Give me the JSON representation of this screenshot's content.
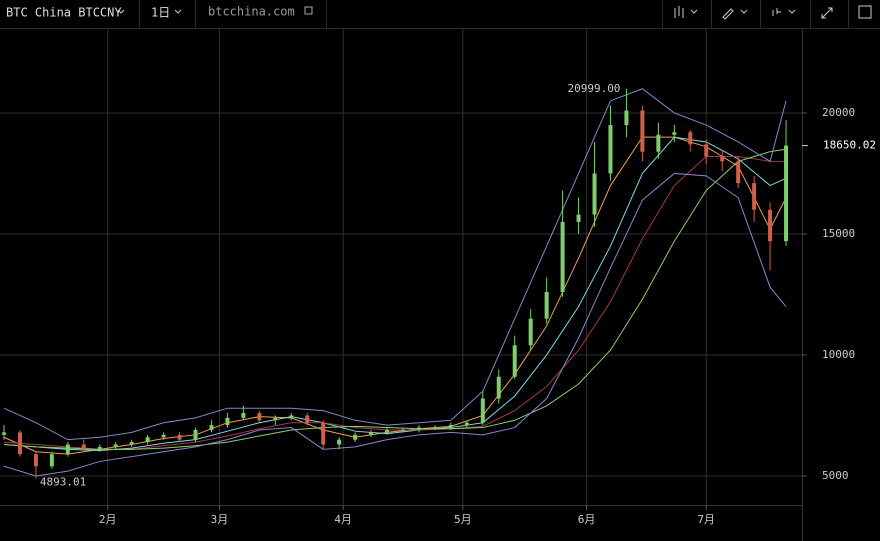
{
  "toolbar": {
    "symbol": "BTC China BTCCNY",
    "interval": "1日",
    "site": "btcchina.com"
  },
  "chart_data": {
    "type": "candlestick",
    "x": [
      5,
      9,
      13,
      17,
      21,
      25,
      29,
      33,
      37,
      41,
      45,
      49,
      53,
      57,
      61,
      65,
      69,
      73,
      77,
      81,
      85,
      89,
      93,
      97,
      101,
      105,
      109,
      113,
      117,
      121,
      125,
      129,
      133,
      137,
      141,
      145,
      149,
      153,
      157,
      161,
      165,
      169,
      173,
      177,
      181,
      185,
      189,
      193,
      197,
      201
    ],
    "open": [
      6700,
      6800,
      5900,
      5400,
      5900,
      6300,
      6100,
      6200,
      6300,
      6400,
      6600,
      6700,
      6500,
      6900,
      7100,
      7400,
      7600,
      7300,
      7400,
      7500,
      7200,
      6300,
      6500,
      6700,
      6800,
      6900,
      6900,
      7000,
      7000,
      7100,
      7200,
      8200,
      9100,
      10400,
      11500,
      12600,
      15500,
      15800,
      17500,
      19500,
      20100,
      18400,
      19100,
      19200,
      18700,
      18200,
      18000,
      17100,
      16000,
      14700
    ],
    "high": [
      7100,
      6900,
      6000,
      6000,
      6400,
      6500,
      6300,
      6400,
      6500,
      6700,
      6800,
      6800,
      7000,
      7300,
      7600,
      7900,
      7700,
      7500,
      7600,
      7600,
      7300,
      6600,
      6800,
      6900,
      7000,
      7000,
      7100,
      7100,
      7200,
      7300,
      8500,
      9400,
      10800,
      11900,
      13200,
      16800,
      16500,
      18800,
      20300,
      20999,
      20300,
      19600,
      19500,
      19300,
      18900,
      18500,
      18200,
      17400,
      16300,
      19700
    ],
    "low": [
      6500,
      5800,
      4893.01,
      5300,
      5800,
      6000,
      6000,
      6100,
      6200,
      6300,
      6500,
      6400,
      6400,
      6800,
      7000,
      7300,
      7200,
      7100,
      7300,
      7100,
      6100,
      6100,
      6400,
      6600,
      6700,
      6800,
      6800,
      6900,
      6900,
      7000,
      7100,
      8000,
      9000,
      10200,
      11300,
      12400,
      15000,
      15300,
      17200,
      19000,
      18000,
      18100,
      18800,
      18400,
      17900,
      17600,
      16900,
      15500,
      13500,
      14500
    ],
    "close": [
      6800,
      5900,
      5400,
      5900,
      6300,
      6100,
      6200,
      6300,
      6400,
      6600,
      6700,
      6500,
      6900,
      7100,
      7400,
      7600,
      7300,
      7400,
      7500,
      7200,
      6300,
      6500,
      6700,
      6800,
      6900,
      6900,
      7000,
      7000,
      7100,
      7200,
      8200,
      9100,
      10400,
      11500,
      12600,
      15500,
      15800,
      17500,
      19500,
      20100,
      18400,
      19100,
      19200,
      18700,
      18200,
      18000,
      17100,
      16000,
      14700,
      18650.02
    ],
    "up_color": "#7ccf6a",
    "down_color": "#d0604c",
    "overlay_x": [
      5,
      13,
      21,
      29,
      37,
      45,
      53,
      61,
      69,
      77,
      85,
      93,
      101,
      109,
      117,
      125,
      133,
      141,
      149,
      157,
      165,
      173,
      181,
      189,
      197,
      201
    ],
    "overlays": [
      {
        "color": "#f0a050",
        "values": [
          6600,
          6000,
          5900,
          6100,
          6300,
          6550,
          6700,
          7200,
          7450,
          7400,
          6900,
          6600,
          6800,
          6950,
          7050,
          7500,
          9200,
          11200,
          14000,
          17000,
          19000,
          19000,
          18600,
          17800,
          15200,
          16500
        ]
      },
      {
        "color": "#7fd8e8",
        "values": [
          6300,
          6200,
          6100,
          6050,
          6150,
          6350,
          6500,
          6850,
          7200,
          7450,
          7200,
          6850,
          6750,
          6900,
          7000,
          7200,
          8300,
          10000,
          12000,
          14500,
          17500,
          19000,
          18800,
          18100,
          17000,
          17300
        ]
      },
      {
        "color": "#a03a48",
        "values": [
          6400,
          6300,
          6200,
          6100,
          6100,
          6250,
          6400,
          6650,
          6950,
          7200,
          7200,
          7000,
          6900,
          6900,
          6950,
          7050,
          7700,
          8700,
          10200,
          12200,
          14800,
          17000,
          18200,
          18200,
          18000,
          18000
        ]
      },
      {
        "color": "#8ccf6a",
        "values": [
          6300,
          6200,
          6150,
          6100,
          6100,
          6150,
          6250,
          6400,
          6650,
          6900,
          7000,
          7050,
          7000,
          6950,
          6950,
          7000,
          7300,
          7900,
          8800,
          10200,
          12300,
          14700,
          16800,
          18000,
          18400,
          18500
        ]
      },
      {
        "color": "#8a86c8",
        "values": [
          7800,
          7200,
          6500,
          6600,
          6800,
          7200,
          7400,
          7800,
          7800,
          7800,
          7700,
          7300,
          7100,
          7200,
          7300,
          8500,
          11500,
          14500,
          17500,
          20500,
          21000,
          20000,
          19500,
          18800,
          18000,
          20500
        ]
      },
      {
        "color": "#8a86c8",
        "values": [
          5400,
          5000,
          5200,
          5600,
          5800,
          6000,
          6200,
          6500,
          6900,
          7000,
          6100,
          6200,
          6500,
          6700,
          6800,
          6700,
          7000,
          8200,
          10700,
          13600,
          16400,
          17500,
          17400,
          16500,
          12800,
          12000
        ]
      }
    ],
    "annotations": [
      {
        "value": 20999,
        "label": "20999.00"
      },
      {
        "value": 4893.01,
        "label": "4893.01"
      }
    ],
    "xlim": [
      4,
      205
    ],
    "xticks": [
      {
        "value": 31,
        "label": "2月"
      },
      {
        "value": 59,
        "label": "3月"
      },
      {
        "value": 90,
        "label": "4月"
      },
      {
        "value": 120,
        "label": "5月"
      },
      {
        "value": 151,
        "label": "6月"
      },
      {
        "value": 181,
        "label": "7月"
      }
    ],
    "ylim": [
      3800,
      23510
    ],
    "yticks": [
      5000,
      10000,
      15000,
      20000
    ],
    "grid": true
  }
}
